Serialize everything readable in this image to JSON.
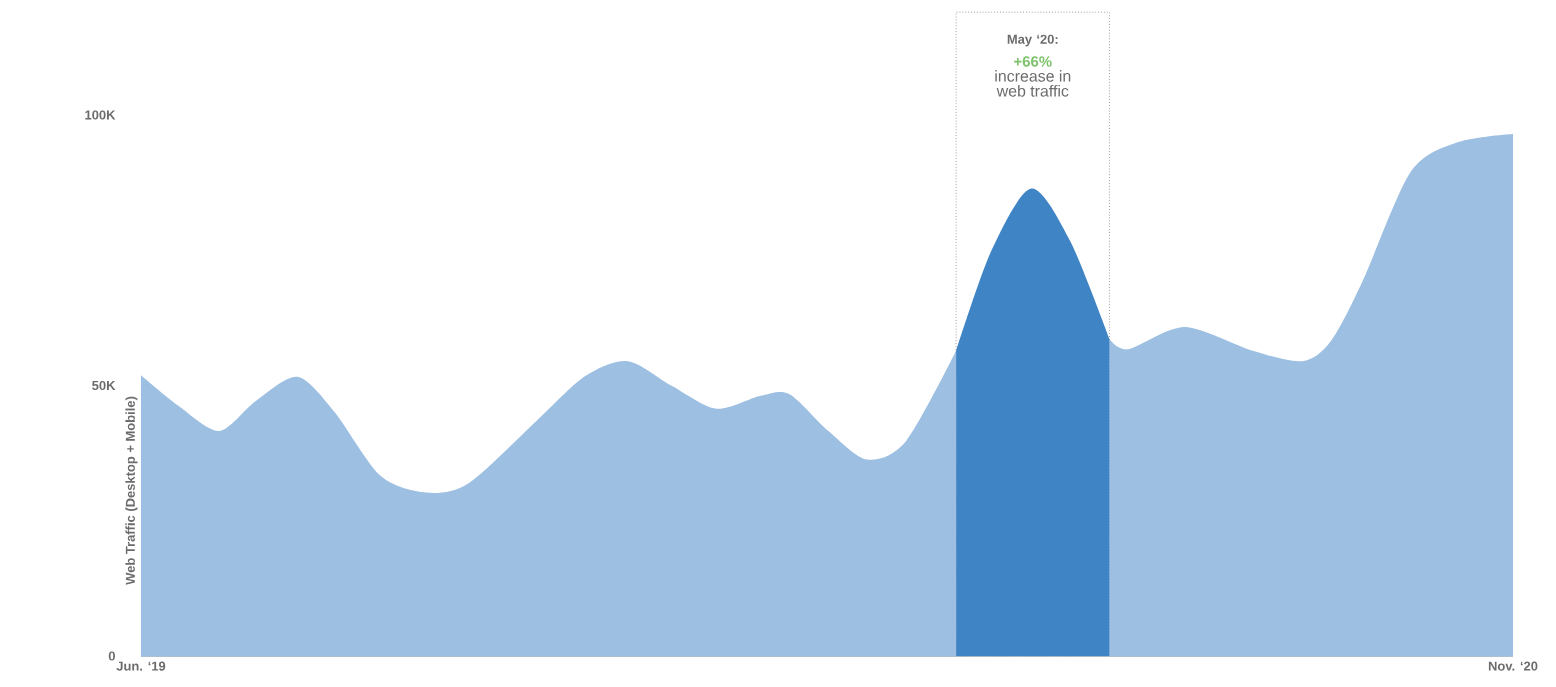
{
  "chart_data": {
    "type": "area",
    "ylabel": "Web Traffic (Desktop + Mobile)",
    "xlim": [
      "2019-06-01",
      "2020-11-01"
    ],
    "xticks": [
      {
        "value": "2019-06-01",
        "label": "Jun. ‘19"
      },
      {
        "value": "2020-11-01",
        "label": "Nov. ‘20"
      }
    ],
    "ylim": [
      0,
      100000
    ],
    "yticks": [
      {
        "value": 0,
        "label": "0"
      },
      {
        "value": 50000,
        "label": "50K"
      },
      {
        "value": 100000,
        "label": "100K"
      }
    ],
    "series": [
      {
        "color": "#9dbfe2",
        "x": [
          "2019-06-01",
          "2019-06-15",
          "2019-06-30",
          "2019-07-14",
          "2019-07-30",
          "2019-08-13",
          "2019-08-31",
          "2019-09-17",
          "2019-10-03",
          "2019-10-29",
          "2019-11-16",
          "2019-12-02",
          "2019-12-19",
          "2020-01-05",
          "2020-01-22",
          "2020-02-02",
          "2020-02-16",
          "2020-03-01",
          "2020-03-16",
          "2020-04-04",
          "2020-04-17",
          "2020-05-02",
          "2020-05-17",
          "2020-06-01",
          "2020-06-08",
          "2020-06-29",
          "2020-07-25",
          "2020-08-13",
          "2020-08-24",
          "2020-09-05",
          "2020-09-23",
          "2020-10-11",
          "2020-11-01"
        ],
        "values": [
          51900,
          46200,
          41600,
          47100,
          51600,
          45300,
          33300,
          30200,
          32000,
          43500,
          51700,
          54500,
          49900,
          45700,
          48100,
          48400,
          41600,
          36300,
          39800,
          56400,
          null,
          null,
          null,
          58600,
          56700,
          60800,
          56400,
          54500,
          58200,
          69200,
          89500,
          95000,
          96500
        ]
      },
      {
        "color": "#3f84c5",
        "x": [
          "2020-04-04",
          "2020-04-17",
          "2020-05-02",
          "2020-05-17",
          "2020-06-01"
        ],
        "values": [
          56400,
          74800,
          86400,
          76600,
          58600
        ]
      }
    ],
    "bands": [
      {
        "axis": "x",
        "from": "2020-04-04",
        "to": "2020-06-01",
        "label": "May ‘20:",
        "color": "#ffffff"
      }
    ],
    "annotations": [
      "+66%",
      "increase in web traffic"
    ],
    "grid": false
  }
}
